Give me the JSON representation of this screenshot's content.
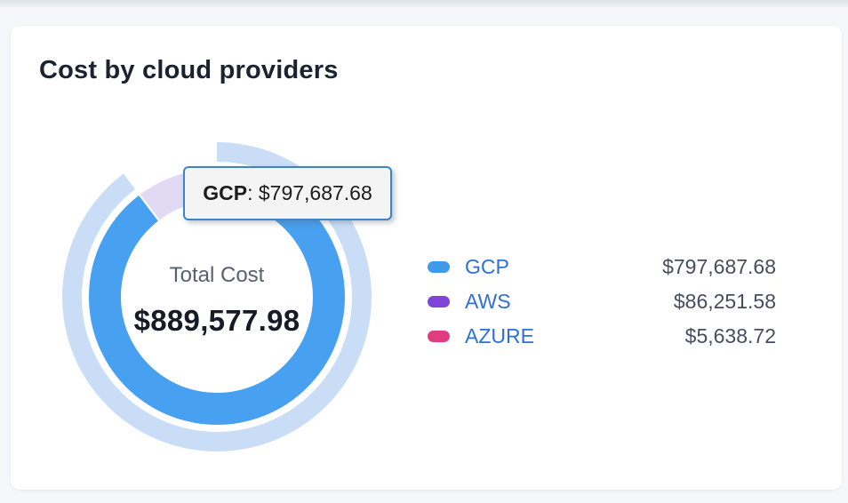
{
  "page": {
    "background": "#f6f7fb"
  },
  "card": {
    "title": "Cost by cloud providers"
  },
  "chart_data": {
    "type": "pie",
    "title": "Cost by cloud providers",
    "total_label": "Total Cost",
    "total_value": 889577.98,
    "total_formatted": "$889,577.98",
    "legend_position": "right",
    "hovered_series": "GCP",
    "hover_halo_color": "#c9def6",
    "start_angle_deg": 0,
    "series": [
      {
        "name": "GCP",
        "value": 797687.68,
        "formatted": "$797,687.68",
        "color": "#3f9ae9",
        "arc_color": "#47a0f0",
        "state": "hovered"
      },
      {
        "name": "AWS",
        "value": 86251.58,
        "formatted": "$86,251.58",
        "color": "#7e45d8",
        "arc_color": "#e2d9f4",
        "state": "dimmed"
      },
      {
        "name": "AZURE",
        "value": 5638.72,
        "formatted": "$5,638.72",
        "color": "#e03c80",
        "arc_color": "#f6c6da",
        "state": "dimmed"
      }
    ]
  },
  "tooltip": {
    "label": "GCP",
    "separator": ": ",
    "value": "$797,687.68"
  }
}
